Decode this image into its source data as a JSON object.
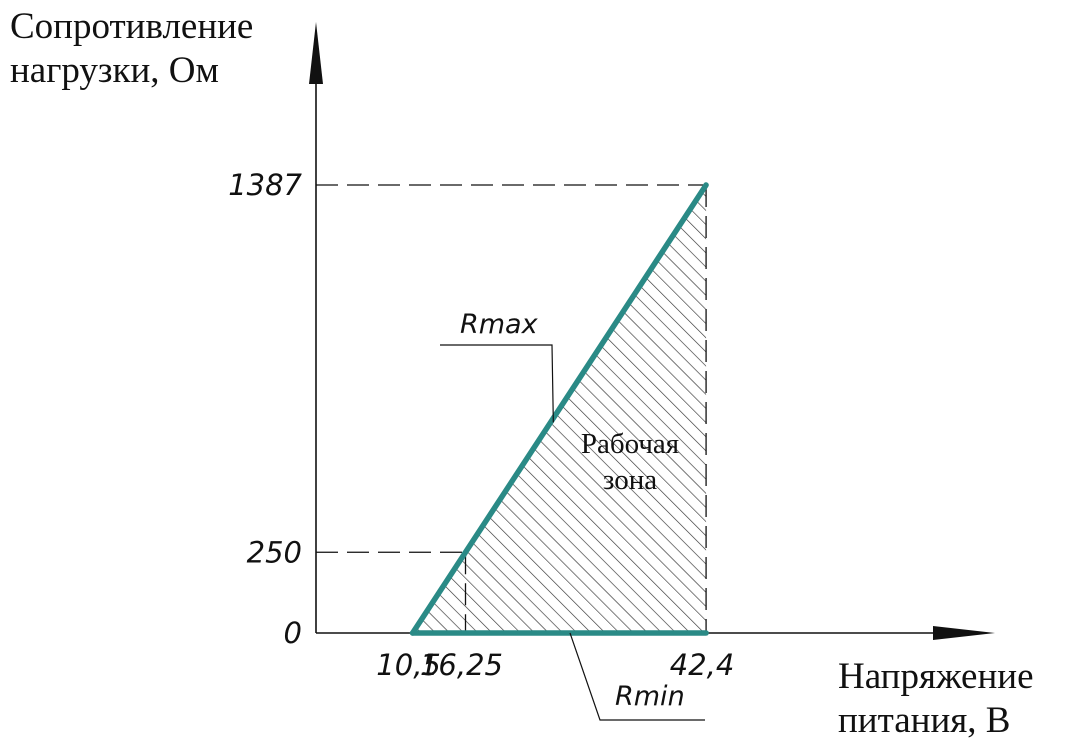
{
  "chart_data": {
    "type": "area",
    "ylabel_lines": [
      "Сопротивление",
      "нагрузки, Ом"
    ],
    "xlabel_lines": [
      "Напряжение",
      "питания, В"
    ],
    "x_ticks": [
      "10,5",
      "16,25",
      "42,4"
    ],
    "y_ticks": [
      "0",
      "250",
      "1387"
    ],
    "xlim": [
      0,
      70
    ],
    "ylim": [
      0,
      1387
    ],
    "series": [
      {
        "name": "Rmax",
        "x": [
          10.5,
          42.4
        ],
        "y": [
          0,
          1387
        ]
      },
      {
        "name": "Rmin",
        "x": [
          10.5,
          42.4
        ],
        "y": [
          0,
          0
        ]
      }
    ],
    "guide_points": [
      {
        "x": 16.25,
        "y": 250
      },
      {
        "x": 42.4,
        "y": 1387
      }
    ],
    "region_label_lines": [
      "Рабочая",
      "зона"
    ],
    "hatched_region": true,
    "colors": {
      "series_line": "#2a8a86",
      "axes": "#111111",
      "hatch": "#333333"
    }
  }
}
